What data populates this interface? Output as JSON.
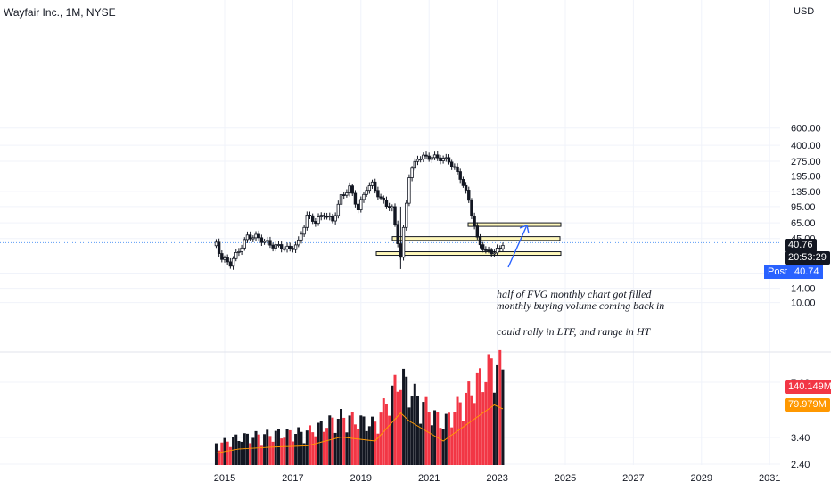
{
  "chart_data": {
    "type": "candlestick",
    "title": "Wayfair Inc., 1M, NYSE",
    "currency": "USD",
    "y_scale": "log",
    "price_ticks": [
      "600.00",
      "400.00",
      "275.00",
      "195.00",
      "135.00",
      "95.00",
      "65.00",
      "45.00",
      "20.00",
      "14.00",
      "10.00"
    ],
    "volume_ticks": [
      "7.00",
      "3.40",
      "2.40"
    ],
    "x_ticks": [
      "2015",
      "2017",
      "2019",
      "2021",
      "2023",
      "2025",
      "2027",
      "2029",
      "2031"
    ],
    "last_price": {
      "value": "40.76",
      "countdown": "20:53:29"
    },
    "post_market": {
      "label": "Post",
      "value": "40.74"
    },
    "volume_badges": [
      {
        "value": "140.149M",
        "color": "#f23645"
      },
      {
        "value": "79.979M",
        "color": "#ff9800"
      }
    ],
    "price_series": [
      {
        "date": "2014-10",
        "close": 40
      },
      {
        "date": "2014-12",
        "close": 28
      },
      {
        "date": "2015-03",
        "close": 25
      },
      {
        "date": "2015-06",
        "close": 34
      },
      {
        "date": "2015-09",
        "close": 47
      },
      {
        "date": "2015-12",
        "close": 47
      },
      {
        "date": "2016-03",
        "close": 42
      },
      {
        "date": "2016-06",
        "close": 38
      },
      {
        "date": "2016-09",
        "close": 37
      },
      {
        "date": "2016-12",
        "close": 35
      },
      {
        "date": "2017-03",
        "close": 41
      },
      {
        "date": "2017-06",
        "close": 76
      },
      {
        "date": "2017-09",
        "close": 67
      },
      {
        "date": "2017-12",
        "close": 80
      },
      {
        "date": "2018-03",
        "close": 68
      },
      {
        "date": "2018-06",
        "close": 119
      },
      {
        "date": "2018-09",
        "close": 148
      },
      {
        "date": "2018-12",
        "close": 90
      },
      {
        "date": "2019-03",
        "close": 148
      },
      {
        "date": "2019-05",
        "close": 160
      },
      {
        "date": "2019-08",
        "close": 112
      },
      {
        "date": "2019-12",
        "close": 90
      },
      {
        "date": "2020-03",
        "close": 29
      },
      {
        "date": "2020-06",
        "close": 198
      },
      {
        "date": "2020-09",
        "close": 300
      },
      {
        "date": "2021-01",
        "close": 305
      },
      {
        "date": "2021-04",
        "close": 300
      },
      {
        "date": "2021-08",
        "close": 280
      },
      {
        "date": "2021-12",
        "close": 190
      },
      {
        "date": "2022-03",
        "close": 110
      },
      {
        "date": "2022-06",
        "close": 44
      },
      {
        "date": "2022-09",
        "close": 33
      },
      {
        "date": "2022-12",
        "close": 33
      },
      {
        "date": "2023-02",
        "close": 35
      },
      {
        "date": "2023-03",
        "close": 40.76
      }
    ],
    "volume_series": [
      {
        "date": "2014-10",
        "value": 30
      },
      {
        "date": "2015-06",
        "value": 40
      },
      {
        "date": "2016-06",
        "value": 45
      },
      {
        "date": "2017-06",
        "value": 48
      },
      {
        "date": "2018-06",
        "value": 70
      },
      {
        "date": "2019-06",
        "value": 60
      },
      {
        "date": "2020-03",
        "value": 130
      },
      {
        "date": "2020-06",
        "value": 110
      },
      {
        "date": "2021-06",
        "value": 60
      },
      {
        "date": "2022-06",
        "value": 120
      },
      {
        "date": "2022-12",
        "value": 150
      },
      {
        "date": "2023-03",
        "value": 140.149
      }
    ],
    "volume_ma": {
      "value": 79.979,
      "color": "#ff9800"
    },
    "fvg_zones": [
      {
        "low": 60,
        "high": 65
      },
      {
        "low": 43,
        "high": 47
      },
      {
        "low": 31,
        "high": 33
      }
    ],
    "annotation_lines": [
      "half of FVG monthly chart got filled",
      "monthly buying volume coming back in",
      "",
      "could rally in LTF, and range in HT"
    ]
  }
}
